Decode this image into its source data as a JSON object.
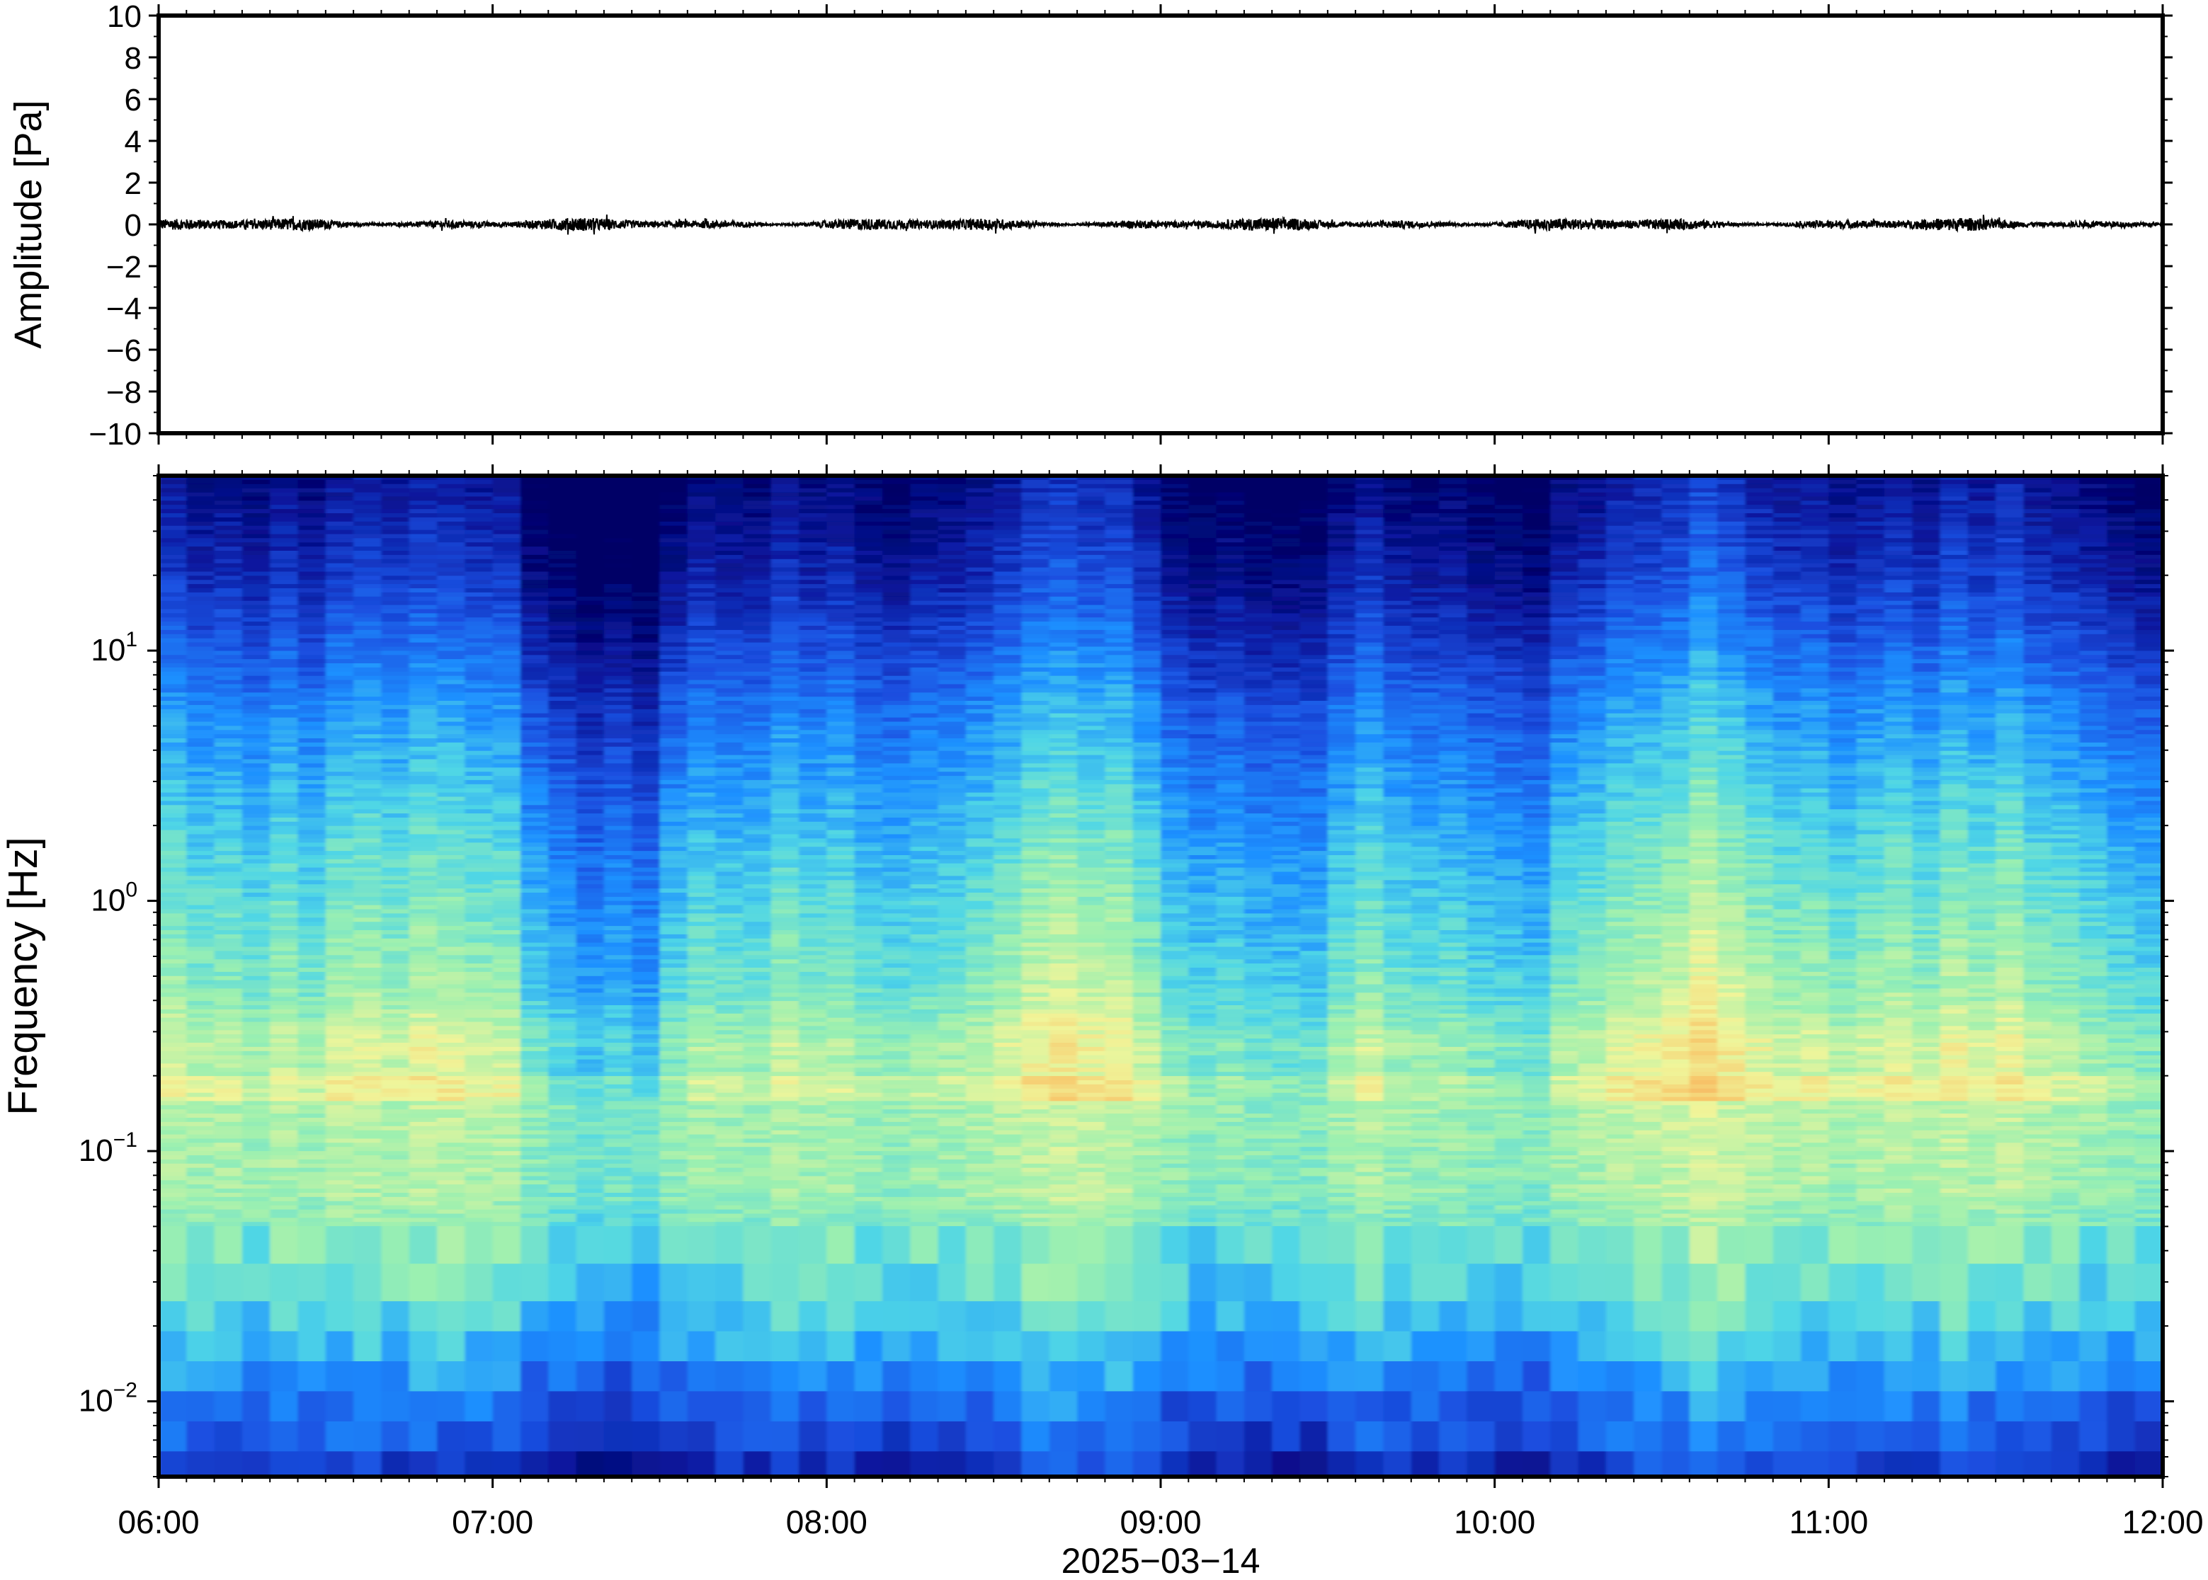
{
  "chart_data": [
    {
      "type": "line",
      "panel": "waveform",
      "ylabel": "Amplitude [Pa]",
      "ylim": [
        -10,
        10
      ],
      "y_ticks": [
        "10",
        "8",
        "6",
        "4",
        "2",
        "0",
        "−2",
        "−4",
        "−6",
        "−8",
        "−10"
      ],
      "x": [
        "06:00",
        "12:00"
      ],
      "approx_amplitude_range": [
        -0.35,
        0.35
      ],
      "series": [
        {
          "values": "noise around 0 Pa, amplitude roughly ±0.3 Pa across the whole window"
        }
      ],
      "grid": false
    },
    {
      "type": "heatmap",
      "panel": "spectrogram",
      "ylabel": "Frequency [Hz]",
      "y_scale": "log",
      "ylim": [
        0.005,
        50
      ],
      "y_ticks": [
        {
          "base": "10",
          "exp": "1"
        },
        {
          "base": "10",
          "exp": "0"
        },
        {
          "base": "10",
          "exp": "−1"
        },
        {
          "base": "10",
          "exp": "−2"
        }
      ],
      "colormap": [
        "#000066",
        "#0a1aa0",
        "#1a4fe0",
        "#1e90ff",
        "#4fd6e6",
        "#9cf0b0",
        "#f0f59a",
        "#f7c66a",
        "#f28a4a"
      ],
      "dominant_band_hz": 0.18,
      "grid": false
    }
  ],
  "x_axis": {
    "ticks": [
      "06:00",
      "07:00",
      "08:00",
      "09:00",
      "10:00",
      "11:00",
      "12:00"
    ],
    "xlabel": "2025−03−14"
  }
}
